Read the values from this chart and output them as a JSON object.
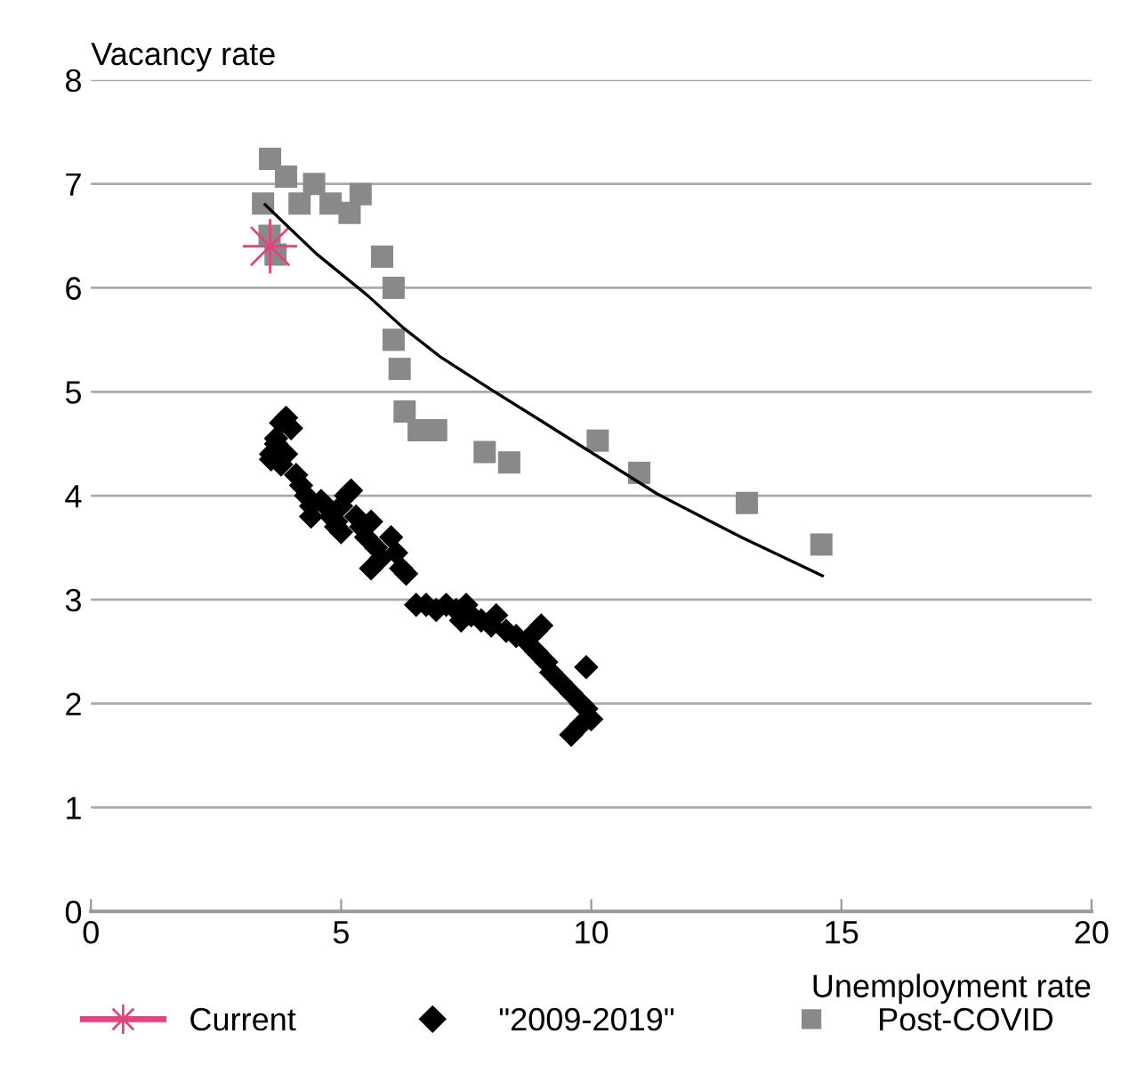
{
  "chart_data": {
    "type": "scatter",
    "ylabel": "Vacancy rate",
    "xlabel": "Unemployment rate",
    "xlim": [
      0,
      20
    ],
    "ylim": [
      0,
      8
    ],
    "xticks": [
      0,
      5,
      10,
      15,
      20
    ],
    "yticks": [
      0,
      1,
      2,
      3,
      4,
      5,
      6,
      7,
      8
    ],
    "grid": "y",
    "legend": "bottom",
    "series": [
      {
        "name": "Current",
        "type": "line",
        "marker": "star",
        "color": "#e0457f",
        "x": [
          3.58
        ],
        "values": [
          6.4
        ]
      },
      {
        "name": "\"2009-2019\"",
        "marker": "diamond",
        "color": "#000000",
        "x": [
          3.6,
          3.7,
          3.9,
          3.8,
          3.6,
          3.7,
          4.0,
          3.9,
          3.8,
          4.1,
          4.2,
          4.3,
          4.4,
          4.4,
          4.6,
          4.7,
          4.8,
          4.9,
          5.0,
          5.1,
          5.2,
          4.9,
          5.0,
          5.3,
          5.4,
          5.5,
          5.6,
          5.7,
          5.8,
          5.6,
          6.0,
          6.1,
          6.2,
          6.3,
          6.5,
          6.7,
          6.9,
          7.1,
          7.3,
          7.5,
          7.4,
          7.6,
          7.8,
          8.0,
          8.1,
          8.3,
          8.5,
          8.7,
          8.9,
          9.0,
          8.9,
          9.1,
          9.2,
          9.4,
          9.6,
          9.8,
          9.9,
          9.9,
          9.8,
          9.6,
          10.0
        ],
        "values": [
          4.4,
          4.5,
          4.75,
          4.7,
          4.35,
          4.55,
          4.65,
          4.4,
          4.3,
          4.2,
          4.1,
          4.0,
          3.9,
          3.8,
          3.95,
          3.9,
          3.8,
          3.75,
          3.9,
          4.0,
          4.05,
          3.7,
          3.65,
          3.8,
          3.7,
          3.6,
          3.75,
          3.5,
          3.4,
          3.3,
          3.6,
          3.45,
          3.3,
          3.25,
          2.95,
          2.95,
          2.9,
          2.95,
          2.9,
          2.95,
          2.8,
          2.85,
          2.8,
          2.75,
          2.85,
          2.7,
          2.65,
          2.6,
          2.7,
          2.75,
          2.5,
          2.4,
          2.3,
          2.2,
          2.1,
          2.0,
          2.35,
          1.95,
          1.8,
          1.7,
          1.85
        ]
      },
      {
        "name": "Post-COVID",
        "marker": "square",
        "color": "#898989",
        "x": [
          3.58,
          3.9,
          4.46,
          3.44,
          4.17,
          4.79,
          5.17,
          5.39,
          3.57,
          3.69,
          5.82,
          6.05,
          6.05,
          6.17,
          6.27,
          6.55,
          6.9,
          7.87,
          8.36,
          10.13,
          10.96,
          13.11,
          14.6
        ],
        "values": [
          7.24,
          7.07,
          7.0,
          6.81,
          6.81,
          6.81,
          6.72,
          6.9,
          6.5,
          6.32,
          6.3,
          6.0,
          5.5,
          5.22,
          4.81,
          4.63,
          4.63,
          4.42,
          4.32,
          4.53,
          4.22,
          3.93,
          3.53
        ]
      },
      {
        "type": "line",
        "marker": "none",
        "color": "#000000",
        "x": [
          3.48,
          4.5,
          5.52,
          6.23,
          7.0,
          8.0,
          9.0,
          9.89,
          11.31,
          13.0,
          14.62
        ],
        "values": [
          6.8,
          6.33,
          5.93,
          5.62,
          5.33,
          5.02,
          4.72,
          4.45,
          4.02,
          3.6,
          3.23
        ]
      }
    ]
  }
}
